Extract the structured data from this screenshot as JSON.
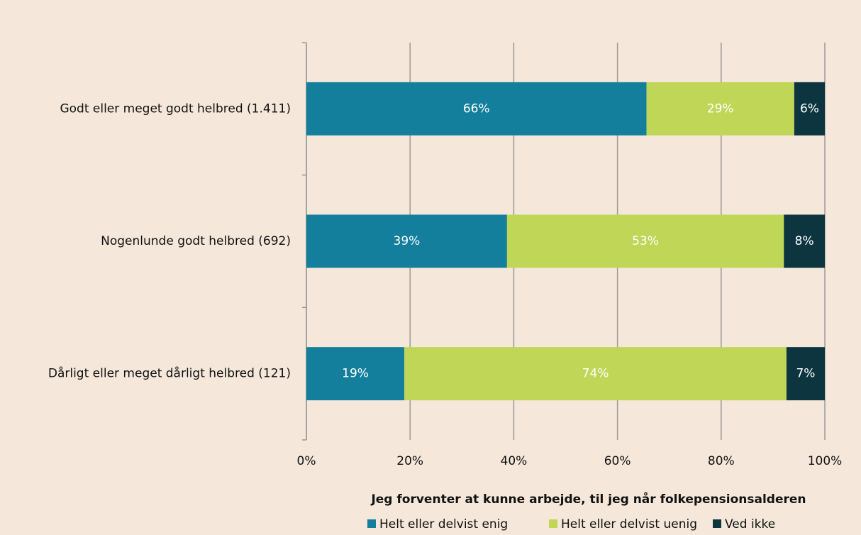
{
  "chart_data": {
    "type": "stacked_bar_horizontal",
    "x_label": "Jeg forventer at kunne arbejde, til jeg når folkepensionsalderen",
    "categories": [
      "Godt eller meget godt helbred (1.411)",
      "Nogenlunde godt helbred (692)",
      "Dårligt eller meget dårligt helbred (121)"
    ],
    "series": [
      {
        "name": "Helt eller delvist enig",
        "color": "#147f9c",
        "values": [
          65.6,
          38.7,
          18.9
        ],
        "value_labels": [
          "66%",
          "39%",
          "19%"
        ]
      },
      {
        "name": "Helt eller delvist uenig",
        "color": "#bfd657",
        "values": [
          28.5,
          53.4,
          73.7
        ],
        "value_labels": [
          "29%",
          "53%",
          "74%"
        ]
      },
      {
        "name": "Ved ikke",
        "color": "#0d3540",
        "values": [
          5.9,
          7.9,
          7.4
        ],
        "value_labels": [
          "6%",
          "8%",
          "7%"
        ]
      }
    ],
    "xlim": [
      0,
      100
    ],
    "xticks": [
      {
        "value": 0,
        "label": "0%"
      },
      {
        "value": 20,
        "label": "20%"
      },
      {
        "value": 40,
        "label": "40%"
      },
      {
        "value": 60,
        "label": "60%"
      },
      {
        "value": 80,
        "label": "80%"
      },
      {
        "value": 100,
        "label": "100%"
      }
    ],
    "grid": true,
    "legend": "bottom"
  }
}
